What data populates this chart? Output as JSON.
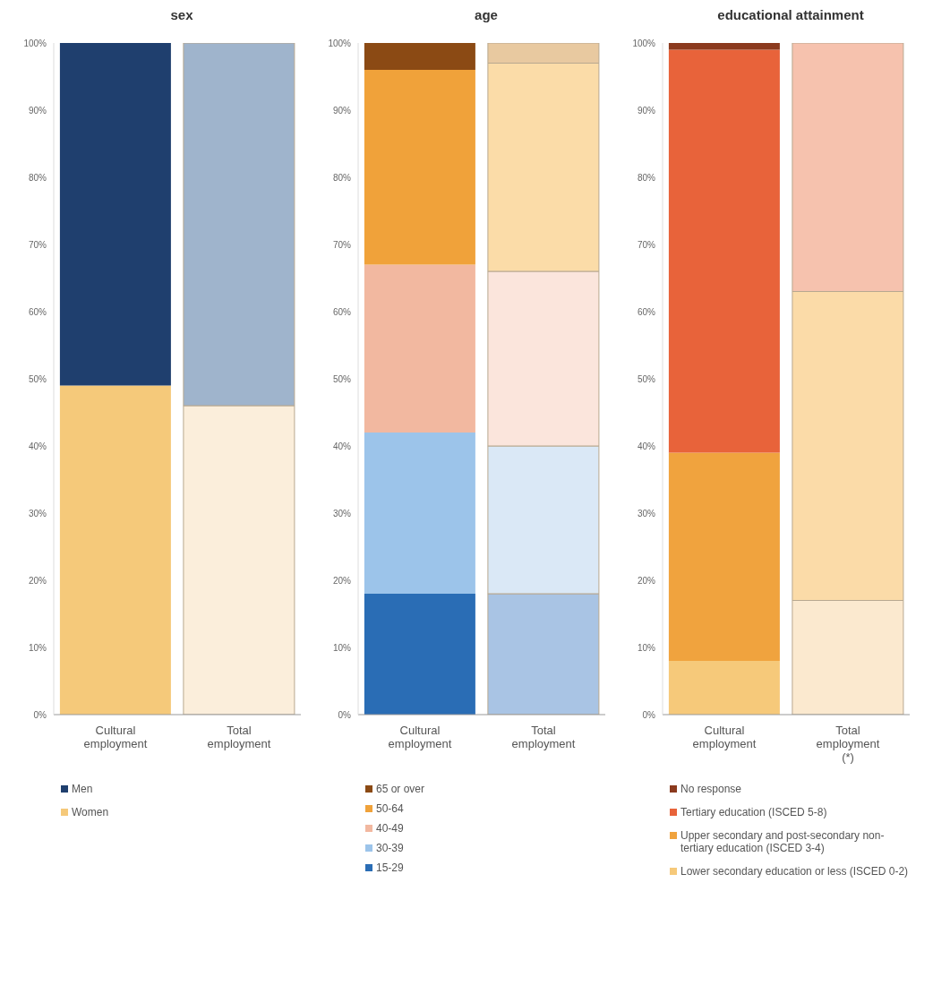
{
  "chart_data": [
    {
      "type": "bar",
      "title": "sex",
      "categories": [
        "Cultural employment",
        "Total employment"
      ],
      "stacked": true,
      "legend": "bottom",
      "ylim": [
        0,
        100
      ],
      "yticks": [
        {
          "value": 0,
          "label": "0%"
        },
        {
          "value": 10,
          "label": "10%"
        },
        {
          "value": 20,
          "label": "20%"
        },
        {
          "value": 30,
          "label": "30%"
        },
        {
          "value": 40,
          "label": "40%"
        },
        {
          "value": 50,
          "label": "50%"
        },
        {
          "value": 60,
          "label": "60%"
        },
        {
          "value": 70,
          "label": "70%"
        },
        {
          "value": 80,
          "label": "80%"
        },
        {
          "value": 90,
          "label": "90%"
        },
        {
          "value": 100,
          "label": "100%"
        }
      ],
      "series": [
        {
          "name": "Women",
          "colors": [
            "#f5c97a",
            "#fbeedb"
          ],
          "values": [
            49,
            46
          ]
        },
        {
          "name": "Men",
          "colors": [
            "#1f3f6e",
            "#9fb4cc"
          ],
          "values": [
            51,
            54
          ]
        }
      ]
    },
    {
      "type": "bar",
      "title": "age",
      "categories": [
        "Cultural employment",
        "Total employment"
      ],
      "stacked": true,
      "legend": "bottom",
      "ylim": [
        0,
        100
      ],
      "yticks": [
        {
          "value": 0,
          "label": "0%"
        },
        {
          "value": 10,
          "label": "10%"
        },
        {
          "value": 20,
          "label": "20%"
        },
        {
          "value": 30,
          "label": "30%"
        },
        {
          "value": 40,
          "label": "40%"
        },
        {
          "value": 50,
          "label": "50%"
        },
        {
          "value": 60,
          "label": "60%"
        },
        {
          "value": 70,
          "label": "70%"
        },
        {
          "value": 80,
          "label": "80%"
        },
        {
          "value": 90,
          "label": "90%"
        },
        {
          "value": 100,
          "label": "100%"
        }
      ],
      "series": [
        {
          "name": "15-29",
          "colors": [
            "#2a6db5",
            "#a9c4e4"
          ],
          "values": [
            18,
            18
          ]
        },
        {
          "name": "30-39",
          "colors": [
            "#9cc4ea",
            "#dae8f6"
          ],
          "values": [
            24,
            22
          ]
        },
        {
          "name": "40-49",
          "colors": [
            "#f2b8a0",
            "#fbe5dc"
          ],
          "values": [
            25,
            26
          ]
        },
        {
          "name": "50-64",
          "colors": [
            "#f0a23a",
            "#fbdca8"
          ],
          "values": [
            29,
            31
          ]
        },
        {
          "name": "65 or over",
          "colors": [
            "#8b4a14",
            "#e8c9a0"
          ],
          "values": [
            4,
            3
          ]
        }
      ]
    },
    {
      "type": "bar",
      "title": "educational attainment",
      "categories": [
        "Cultural employment",
        "Total employment (*)"
      ],
      "stacked": true,
      "legend": "bottom",
      "ylim": [
        0,
        100
      ],
      "yticks": [
        {
          "value": 0,
          "label": "0%"
        },
        {
          "value": 10,
          "label": "10%"
        },
        {
          "value": 20,
          "label": "20%"
        },
        {
          "value": 30,
          "label": "30%"
        },
        {
          "value": 40,
          "label": "40%"
        },
        {
          "value": 50,
          "label": "50%"
        },
        {
          "value": 60,
          "label": "60%"
        },
        {
          "value": 70,
          "label": "70%"
        },
        {
          "value": 80,
          "label": "80%"
        },
        {
          "value": 90,
          "label": "90%"
        },
        {
          "value": 100,
          "label": "100%"
        }
      ],
      "series": [
        {
          "name": "Lower secondary education or less (ISCED 0-2)",
          "colors": [
            "#f6c97a",
            "#fbe9cf"
          ],
          "values": [
            8,
            17
          ]
        },
        {
          "name": "Upper secondary and post-secondary non-tertiary education (ISCED 3-4)",
          "colors": [
            "#f0a33e",
            "#fbdba8"
          ],
          "values": [
            31,
            46
          ]
        },
        {
          "name": "Tertiary education (ISCED 5-8)",
          "colors": [
            "#e8633a",
            "#f6c2ae"
          ],
          "values": [
            60,
            37
          ]
        },
        {
          "name": "No response",
          "colors": [
            "#8b3a1e",
            "#f3e3d8"
          ],
          "values": [
            1,
            0
          ]
        }
      ]
    }
  ]
}
